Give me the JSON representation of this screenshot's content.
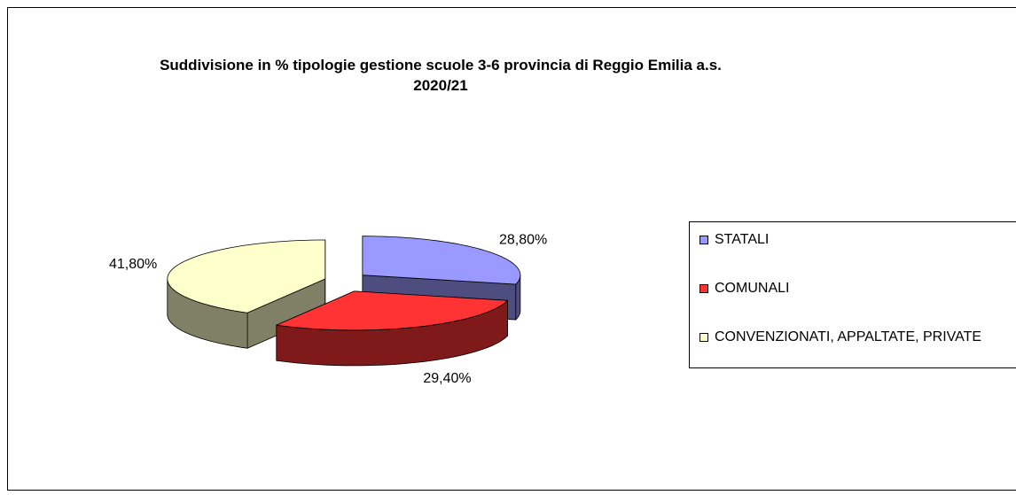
{
  "chart_data": {
    "type": "pie3d",
    "title": "Suddivisione in % tipologie gestione scuole 3-6 provincia di Reggio Emilia a.s. 2020/21",
    "categories": [
      "STATALI",
      "COMUNALI",
      "CONVENZIONATI, APPALTATE, PRIVATE"
    ],
    "values": [
      28.8,
      29.4,
      41.8
    ],
    "value_labels": [
      "28,80%",
      "29,40%",
      "41,80%"
    ],
    "colors": [
      "#9999ff",
      "#ff3333",
      "#ffffcc"
    ],
    "legend": "right"
  }
}
